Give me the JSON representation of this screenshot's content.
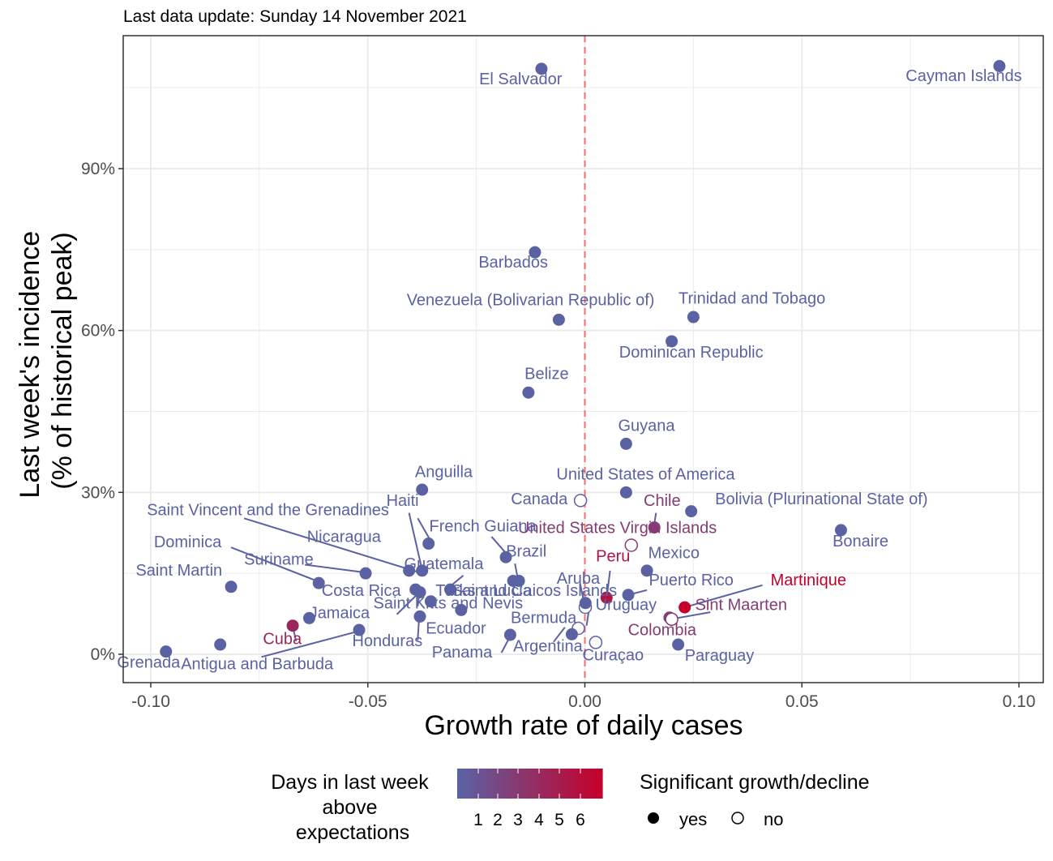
{
  "chart_data": {
    "type": "scatter",
    "subtitle": "Last data update: Sunday 14 November 2021",
    "xlabel": "Growth rate of daily cases",
    "ylabel_line1": "Last week's incidence",
    "ylabel_line2": "(% of historical peak)",
    "xlim": [
      -0.105,
      0.105
    ],
    "ylim": [
      -5,
      114
    ],
    "x_ticks": [
      -0.1,
      -0.05,
      0.0,
      0.05,
      0.1
    ],
    "x_tick_labels": [
      "-0.10",
      "-0.05",
      "0.00",
      "0.05",
      "0.10"
    ],
    "y_ticks": [
      0,
      30,
      60,
      90
    ],
    "y_tick_labels": [
      "0%",
      "30%",
      "60%",
      "90%"
    ],
    "reference_line_x": 0,
    "grid": true,
    "colors": {
      "low": "#5b62a4",
      "high": "#c4002b",
      "refline": "#e87474",
      "grid": "#ebebeb",
      "panel_border": "#333333"
    },
    "legend": {
      "position": "bottom",
      "color_title_lines": [
        "Days in last week",
        "above",
        "expectations"
      ],
      "color_scale_labels": [
        "1",
        "2",
        "3",
        "4",
        "5",
        "6"
      ],
      "shape_title": "Significant growth/decline",
      "shape_items": [
        "yes",
        "no"
      ]
    },
    "points": [
      {
        "name": "Cayman Islands",
        "x": 0.0955,
        "y": 109,
        "days": 1,
        "sig": true
      },
      {
        "name": "El Salvador",
        "x": -0.01,
        "y": 108.5,
        "days": 1,
        "sig": true
      },
      {
        "name": "Barbados",
        "x": -0.0115,
        "y": 74.5,
        "days": 1,
        "sig": true
      },
      {
        "name": "Trinidad and Tobago",
        "x": 0.025,
        "y": 62.5,
        "days": 1,
        "sig": true
      },
      {
        "name": "Venezuela (Bolivarian Republic of)",
        "x": -0.006,
        "y": 62,
        "days": 1,
        "sig": true
      },
      {
        "name": "Dominican Republic",
        "x": 0.02,
        "y": 58,
        "days": 1,
        "sig": true
      },
      {
        "name": "Belize",
        "x": -0.013,
        "y": 48.5,
        "days": 1,
        "sig": true
      },
      {
        "name": "Guyana",
        "x": 0.0095,
        "y": 39,
        "days": 1,
        "sig": true
      },
      {
        "name": "Anguilla",
        "x": -0.0375,
        "y": 30.5,
        "days": 1,
        "sig": true
      },
      {
        "name": "United States of America",
        "x": 0.0095,
        "y": 30,
        "days": 1,
        "sig": true
      },
      {
        "name": "Canada",
        "x": -0.001,
        "y": 28.5,
        "days": 1,
        "sig": false
      },
      {
        "name": "Bolivia (Plurinational State of)",
        "x": 0.0245,
        "y": 26.5,
        "days": 1,
        "sig": true
      },
      {
        "name": "Chile",
        "x": 0.016,
        "y": 23.5,
        "days": 3,
        "sig": true
      },
      {
        "name": "Bonaire",
        "x": 0.059,
        "y": 23,
        "days": 1,
        "sig": true
      },
      {
        "name": "United States Virgin Islands",
        "x": 0.0107,
        "y": 20.2,
        "days": 3,
        "sig": false
      },
      {
        "name": "Haiti",
        "x": -0.036,
        "y": 20.5,
        "days": 1,
        "sig": true
      },
      {
        "name": "French Guiana",
        "x": -0.0182,
        "y": 18,
        "days": 1,
        "sig": true
      },
      {
        "name": "Mexico",
        "x": 0.0143,
        "y": 15.5,
        "days": 1,
        "sig": true
      },
      {
        "name": "Guatemala",
        "x": -0.0375,
        "y": 15.5,
        "days": 1,
        "sig": true
      },
      {
        "name": "Nicaragua",
        "x": -0.0405,
        "y": 15.5,
        "days": 1,
        "sig": true
      },
      {
        "name": "Suriname",
        "x": -0.0505,
        "y": 15,
        "days": 1,
        "sig": true
      },
      {
        "name": "Brazil",
        "x": -0.0152,
        "y": 13.6,
        "days": 1,
        "sig": true
      },
      {
        "name": "Saint Lucia",
        "x": -0.0165,
        "y": 13.6,
        "days": 1,
        "sig": true
      },
      {
        "name": "Dominica",
        "x": -0.0613,
        "y": 13.2,
        "days": 1,
        "sig": true
      },
      {
        "name": "Saint Vincent and the Grenadines",
        "x": -0.039,
        "y": 12,
        "days": 1,
        "sig": true
      },
      {
        "name": "Saint Martin",
        "x": -0.0815,
        "y": 12.5,
        "days": 1,
        "sig": true
      },
      {
        "name": "Turks and Caicos Islands",
        "x": -0.031,
        "y": 12,
        "days": 1,
        "sig": true
      },
      {
        "name": "Costa Rica",
        "x": -0.038,
        "y": 11.5,
        "days": 1,
        "sig": true
      },
      {
        "name": "Puerto Rico",
        "x": 0.01,
        "y": 11,
        "days": 1,
        "sig": true
      },
      {
        "name": "Peru",
        "x": 0.005,
        "y": 10.5,
        "days": 5,
        "sig": true
      },
      {
        "name": "Aruba",
        "x": 0.0001,
        "y": 8.7,
        "days": 1,
        "sig": false
      },
      {
        "name": "Uruguay",
        "x": 0.00015,
        "y": 9.5,
        "days": 1,
        "sig": true
      },
      {
        "name": "Saint Kitts and Nevis",
        "x": -0.0355,
        "y": 9.8,
        "days": 1,
        "sig": true
      },
      {
        "name": "Martinique",
        "x": 0.023,
        "y": 8.7,
        "days": 6,
        "sig": true
      },
      {
        "name": "Bermuda",
        "x": -0.0285,
        "y": 8.2,
        "days": 1,
        "sig": true
      },
      {
        "name": "Ecuador",
        "x": -0.038,
        "y": 7,
        "days": 1,
        "sig": true
      },
      {
        "name": "Sint Maarten",
        "x": 0.0195,
        "y": 6.8,
        "days": 3,
        "sig": true
      },
      {
        "name": "Colombia",
        "x": 0.02,
        "y": 6.5,
        "days": 3,
        "sig": false
      },
      {
        "name": "Jamaica",
        "x": -0.0635,
        "y": 6.7,
        "days": 1,
        "sig": true
      },
      {
        "name": "Cuba",
        "x": -0.0673,
        "y": 5.3,
        "days": 4,
        "sig": true
      },
      {
        "name": "Honduras",
        "x": -0.052,
        "y": 4.5,
        "days": 1,
        "sig": true
      },
      {
        "name": "Panama",
        "x": -0.0015,
        "y": 4.8,
        "days": 1,
        "sig": false
      },
      {
        "name": "Argentina",
        "x": -0.003,
        "y": 3.7,
        "days": 1,
        "sig": true
      },
      {
        "name": "Paraguay",
        "x": -0.0172,
        "y": 3.6,
        "days": 1,
        "sig": true
      },
      {
        "name": "Curaçao",
        "x": 0.0025,
        "y": 2.2,
        "days": 1,
        "sig": false
      },
      {
        "name": "Paraguay2",
        "x": 0.0215,
        "y": 1.8,
        "days": 1,
        "sig": true
      },
      {
        "name": "Antigua and Barbuda",
        "x": -0.084,
        "y": 1.8,
        "days": 1,
        "sig": true
      },
      {
        "name": "Grenada",
        "x": -0.0965,
        "y": 0.5,
        "days": 1,
        "sig": true
      }
    ],
    "labels": [
      {
        "text": "Cayman Islands",
        "x": 0.0873,
        "y": 106.2,
        "days": 1
      },
      {
        "text": "El Salvador",
        "x": -0.0148,
        "y": 105.6,
        "days": 1
      },
      {
        "text": "Barbados",
        "x": -0.0165,
        "y": 71.7,
        "days": 1
      },
      {
        "text": "Trinidad and Tobago",
        "x": 0.0385,
        "y": 65,
        "days": 1
      },
      {
        "text": "Venezuela (Bolivarian Republic of)",
        "x": -0.0125,
        "y": 64.7,
        "days": 1
      },
      {
        "text": "Dominican Republic",
        "x": 0.0245,
        "y": 55,
        "days": 1
      },
      {
        "text": "Belize",
        "x": -0.0088,
        "y": 51,
        "days": 1
      },
      {
        "text": "Guyana",
        "x": 0.0142,
        "y": 41.4,
        "days": 1
      },
      {
        "text": "Anguilla",
        "x": -0.0325,
        "y": 32.8,
        "days": 1
      },
      {
        "text": "United States of America",
        "x": 0.014,
        "y": 32.4,
        "days": 1
      },
      {
        "text": "Canada",
        "x": -0.0105,
        "y": 27.8,
        "days": 1
      },
      {
        "text": "Bolivia (Plurinational State of)",
        "x": 0.0545,
        "y": 27.8,
        "days": 1
      },
      {
        "text": "Chile",
        "x": 0.0178,
        "y": 27.5,
        "days": 3
      },
      {
        "text": "Bonaire",
        "x": 0.0635,
        "y": 20,
        "days": 1
      },
      {
        "text": "United States Virgin Islands",
        "x": 0.0075,
        "y": 22.5,
        "days": 3
      },
      {
        "text": "Haiti",
        "x": -0.042,
        "y": 27.5,
        "days": 1
      },
      {
        "text": "French Guiana",
        "x": -0.0235,
        "y": 22.8,
        "days": 1
      },
      {
        "text": "Mexico",
        "x": 0.0205,
        "y": 17.8,
        "days": 1
      },
      {
        "text": "Guatemala",
        "x": -0.0325,
        "y": 15.8,
        "days": 1
      },
      {
        "text": "Nicaragua",
        "x": -0.0555,
        "y": 20.8,
        "days": 1
      },
      {
        "text": "Suriname",
        "x": -0.0705,
        "y": 16.6,
        "days": 1
      },
      {
        "text": "Brazil",
        "x": -0.0135,
        "y": 18.1,
        "days": 1
      },
      {
        "text": "Saint Lucia",
        "x": -0.0215,
        "y": 10.8,
        "days": 1
      },
      {
        "text": "Dominica",
        "x": -0.0915,
        "y": 19.8,
        "days": 1
      },
      {
        "text": "Saint Vincent and the Grenadines",
        "x": -0.073,
        "y": 25.8,
        "days": 1
      },
      {
        "text": "Saint Martin",
        "x": -0.0935,
        "y": 14.6,
        "days": 1
      },
      {
        "text": "Turks and Caicos Islands",
        "x": -0.0135,
        "y": 10.8,
        "days": 1
      },
      {
        "text": "Costa Rica",
        "x": -0.0515,
        "y": 10.8,
        "days": 1
      },
      {
        "text": "Puerto Rico",
        "x": 0.0245,
        "y": 12.8,
        "days": 1
      },
      {
        "text": "Peru",
        "x": 0.0065,
        "y": 17.2,
        "days": 5
      },
      {
        "text": "Aruba",
        "x": -0.0015,
        "y": 13.1,
        "days": 1
      },
      {
        "text": "Uruguay",
        "x": 0.0095,
        "y": 8.2,
        "days": 1
      },
      {
        "text": "Saint Kitts and Nevis",
        "x": -0.0315,
        "y": 8.5,
        "days": 1
      },
      {
        "text": "Martinique",
        "x": 0.0515,
        "y": 12.8,
        "days": 6
      },
      {
        "text": "Bermuda",
        "x": -0.0095,
        "y": 5.8,
        "days": 1
      },
      {
        "text": "Ecuador",
        "x": -0.0297,
        "y": 3.8,
        "days": 1
      },
      {
        "text": "Sint Maarten",
        "x": 0.036,
        "y": 8.2,
        "days": 3
      },
      {
        "text": "Colombia",
        "x": 0.0178,
        "y": 3.5,
        "days": 3
      },
      {
        "text": "Jamaica",
        "x": -0.0565,
        "y": 6.7,
        "days": 1
      },
      {
        "text": "Cuba",
        "x": -0.0697,
        "y": 1.9,
        "days": 4
      },
      {
        "text": "Honduras",
        "x": -0.0455,
        "y": 1.5,
        "days": 1
      },
      {
        "text": "Panama",
        "x": -0.0283,
        "y": -0.6,
        "days": 1
      },
      {
        "text": "Argentina",
        "x": -0.0085,
        "y": 0.5,
        "days": 1
      },
      {
        "text": "Curaçao",
        "x": 0.0065,
        "y": -1.1,
        "days": 1
      },
      {
        "text": "Paraguay",
        "x": 0.031,
        "y": -1.2,
        "days": 1
      },
      {
        "text": "Antigua and Barbuda",
        "x": -0.0755,
        "y": -2.8,
        "days": 1
      },
      {
        "text": "Grenada",
        "x": -0.1005,
        "y": -2.5,
        "days": 1
      }
    ],
    "leader_lines": [
      {
        "x1": -0.0815,
        "y1": 19.8,
        "x2": -0.0618,
        "y2": 13.6
      },
      {
        "x1": -0.0785,
        "y1": 25.2,
        "x2": -0.0383,
        "y2": 15.2
      },
      {
        "x1": -0.0645,
        "y1": 16.6,
        "x2": -0.051,
        "y2": 15.2
      },
      {
        "x1": -0.0405,
        "y1": 26.2,
        "x2": -0.0376,
        "y2": 16
      },
      {
        "x1": -0.0385,
        "y1": 25.2,
        "x2": -0.0355,
        "y2": 21
      },
      {
        "x1": -0.0215,
        "y1": 21.8,
        "x2": -0.0178,
        "y2": 18.4
      },
      {
        "x1": -0.0161,
        "y1": 16.8,
        "x2": -0.0155,
        "y2": 14.2
      },
      {
        "x1": -0.028,
        "y1": 14.6,
        "x2": -0.031,
        "y2": 12.6
      },
      {
        "x1": -0.0433,
        "y1": 7.4,
        "x2": -0.0385,
        "y2": 11.2
      },
      {
        "x1": -0.0385,
        "y1": 8.9,
        "x2": -0.038,
        "y2": 12.1
      },
      {
        "x1": -0.0385,
        "y1": 2.6,
        "x2": -0.0382,
        "y2": 6.6
      },
      {
        "x1": -0.0072,
        "y1": 2.3,
        "x2": -0.0046,
        "y2": 5
      },
      {
        "x1": -0.0192,
        "y1": 0.3,
        "x2": -0.0175,
        "y2": 2.9
      },
      {
        "x1": -0.0011,
        "y1": 13.1,
        "x2": -0.0001,
        "y2": 9.3
      },
      {
        "x1": 0.0004,
        "y1": 5.3,
        "x2": 0.0009,
        "y2": 8.1
      },
      {
        "x1": 0.0058,
        "y1": 15.5,
        "x2": 0.0051,
        "y2": 10.8
      },
      {
        "x1": 0.0143,
        "y1": 11.9,
        "x2": 0.0105,
        "y2": 11.1
      },
      {
        "x1": 0.0164,
        "y1": 26.2,
        "x2": 0.016,
        "y2": 24.2
      },
      {
        "x1": 0.0409,
        "y1": 12.8,
        "x2": 0.0234,
        "y2": 8.8
      },
      {
        "x1": 0.0289,
        "y1": 7.8,
        "x2": 0.0205,
        "y2": 6.6
      },
      {
        "x1": -0.0745,
        "y1": -0.5,
        "x2": -0.0525,
        "y2": 4.2
      },
      {
        "x1": -0.0665,
        "y1": 2.4,
        "x2": -0.0672,
        "y2": 4.8
      }
    ]
  }
}
